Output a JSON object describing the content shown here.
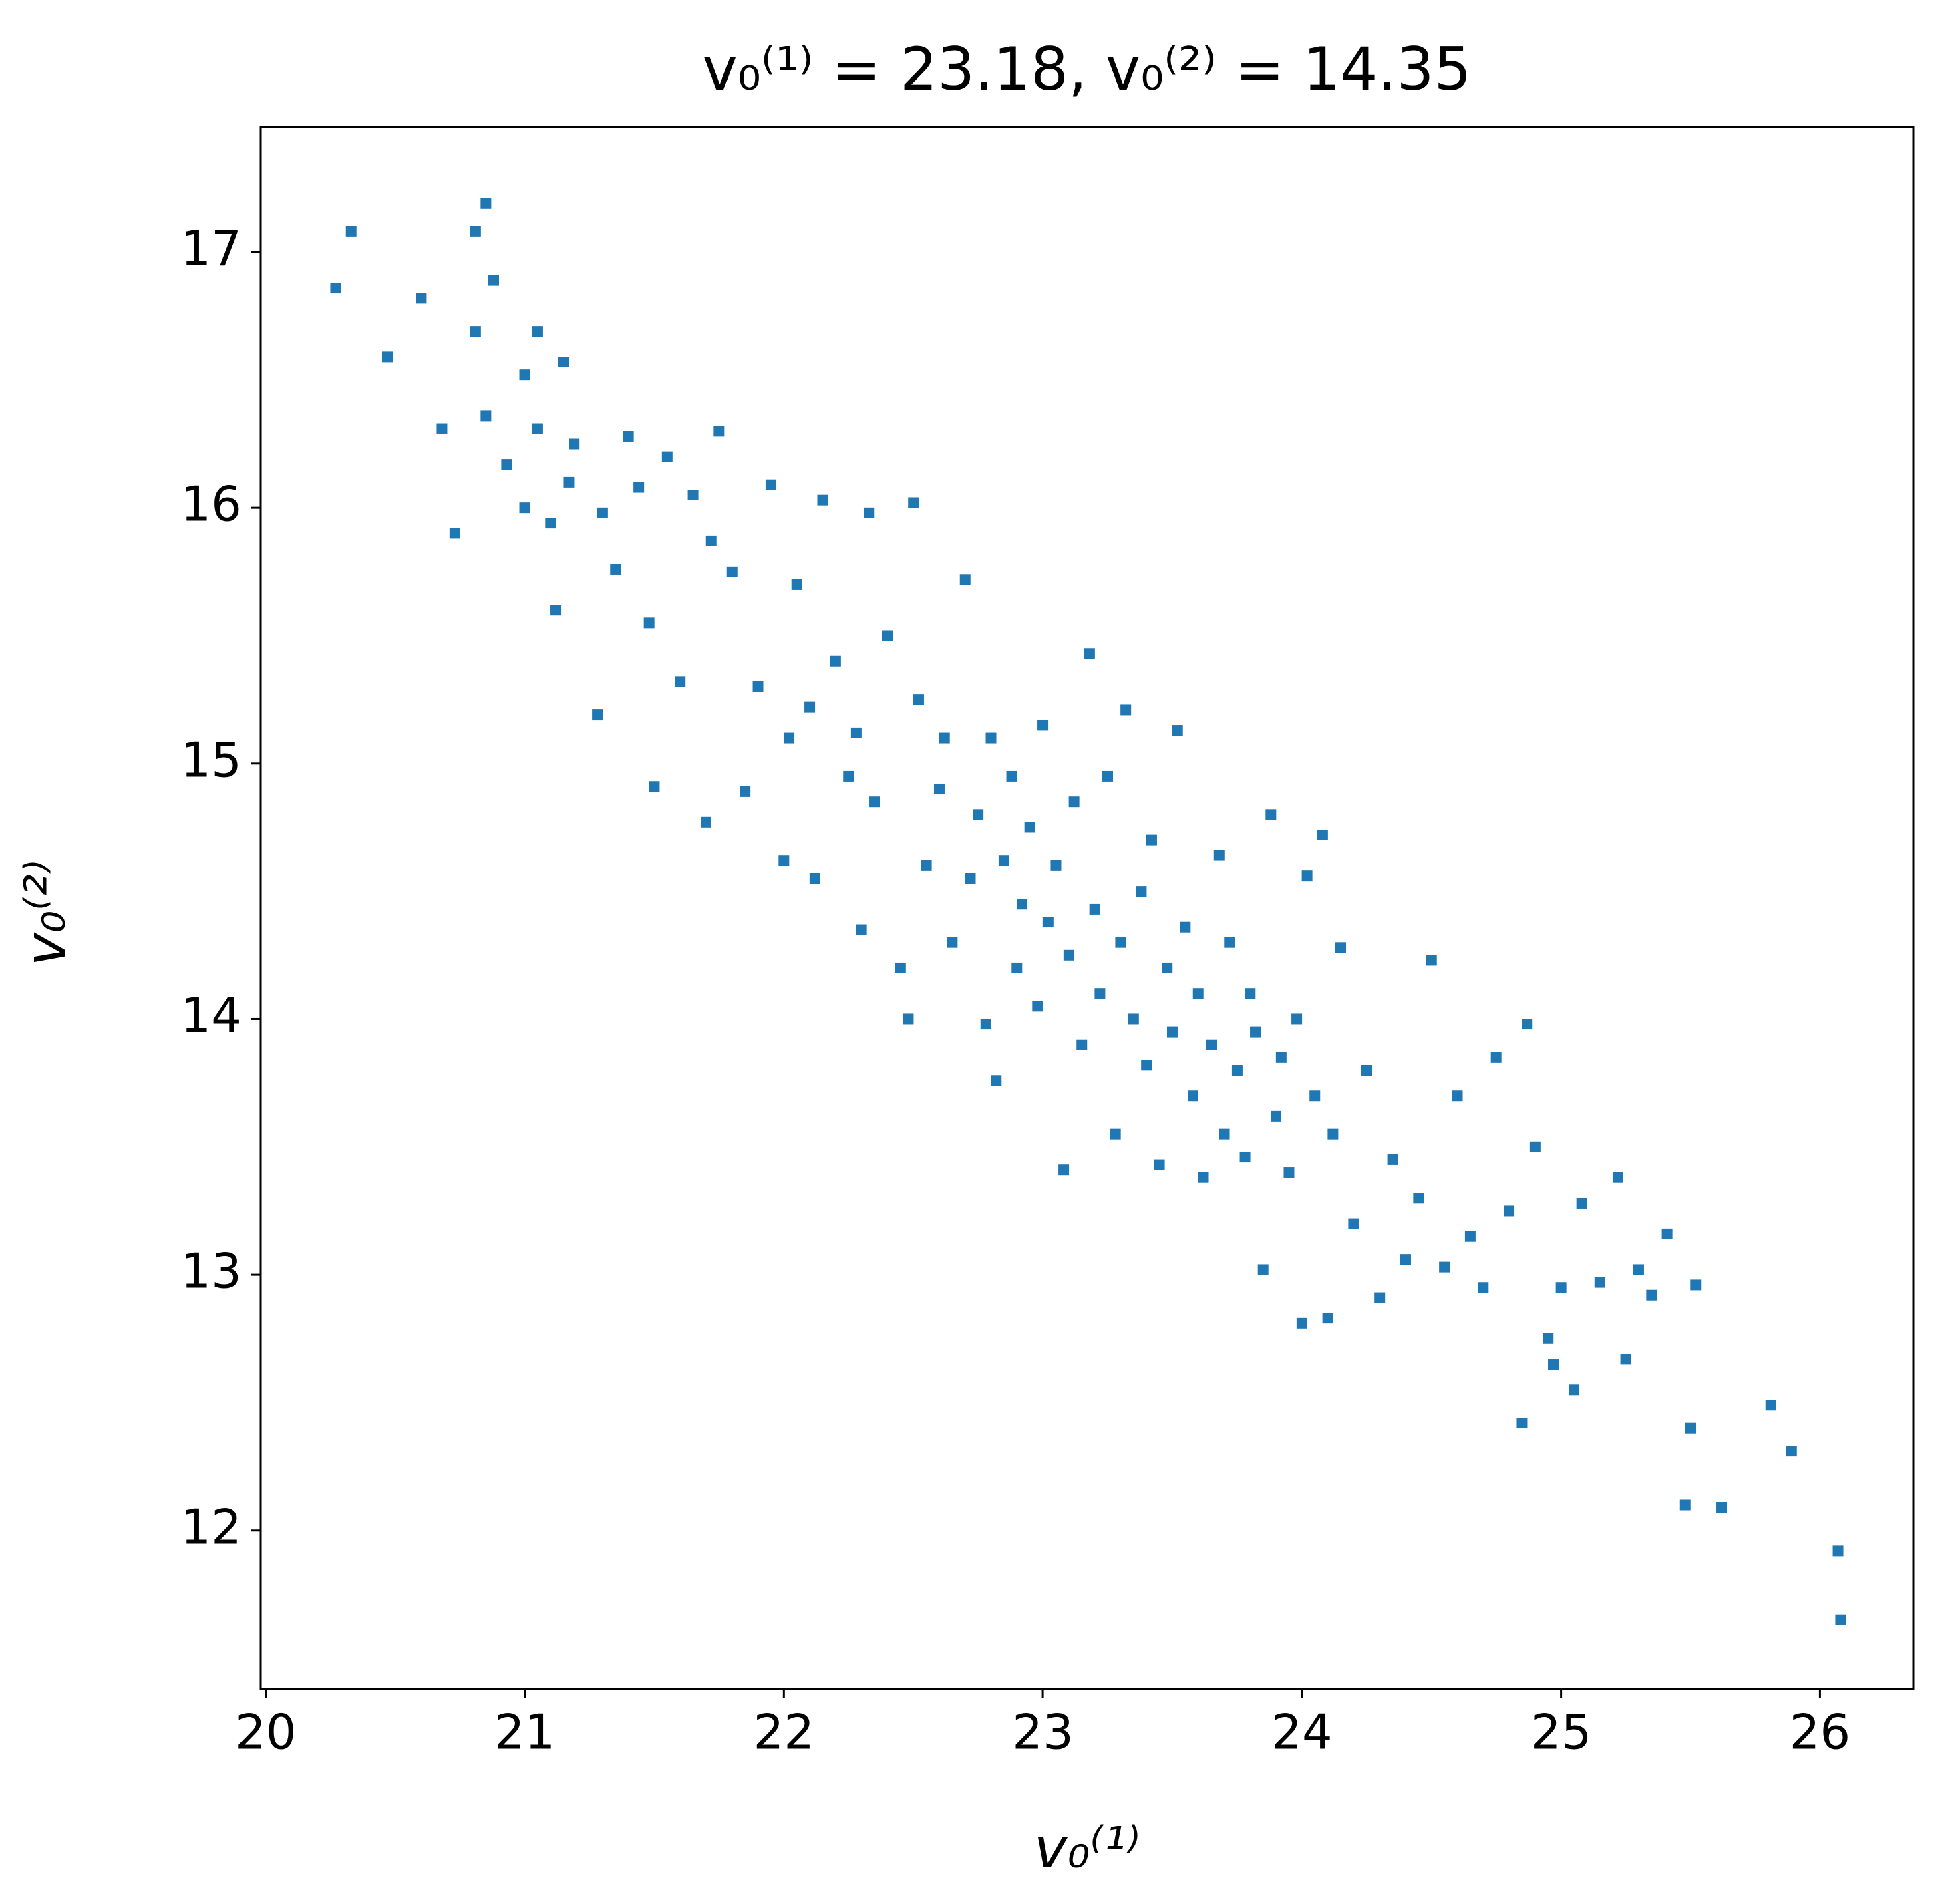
{
  "chart_data": {
    "type": "scatter",
    "title": "v₀⁽¹⁾ = 23.18, v₀⁽²⁾ = 14.35",
    "x_label": "v₀⁽¹⁾",
    "y_label": "v₀⁽²⁾",
    "color": "#1f77b4",
    "xlim": [
      19.98,
      26.36
    ],
    "ylim": [
      11.38,
      17.49
    ],
    "xticks": [
      20,
      21,
      22,
      23,
      24,
      25,
      26
    ],
    "yticks": [
      12,
      13,
      14,
      15,
      16,
      17
    ],
    "grid": false,
    "x": [
      20.27,
      20.33,
      20.47,
      20.6,
      20.68,
      20.73,
      20.81,
      20.81,
      20.85,
      20.85,
      20.88,
      20.93,
      21.0,
      21.0,
      21.05,
      21.05,
      21.1,
      21.12,
      21.15,
      21.17,
      21.19,
      21.28,
      21.3,
      21.35,
      21.4,
      21.44,
      21.48,
      21.5,
      21.55,
      21.6,
      21.65,
      21.7,
      21.72,
      21.75,
      21.8,
      21.85,
      21.9,
      21.95,
      22.0,
      22.02,
      22.05,
      22.1,
      22.12,
      22.15,
      22.2,
      22.25,
      22.28,
      22.3,
      22.33,
      22.35,
      22.4,
      22.45,
      22.48,
      22.5,
      22.52,
      22.55,
      22.6,
      22.62,
      22.65,
      22.7,
      22.72,
      22.75,
      22.78,
      22.8,
      22.82,
      22.85,
      22.88,
      22.9,
      22.92,
      22.95,
      22.98,
      23.0,
      23.02,
      23.05,
      23.08,
      23.1,
      23.12,
      23.15,
      23.18,
      23.2,
      23.22,
      23.25,
      23.28,
      23.3,
      23.32,
      23.35,
      23.38,
      23.4,
      23.42,
      23.45,
      23.48,
      23.5,
      23.52,
      23.55,
      23.58,
      23.6,
      23.62,
      23.65,
      23.68,
      23.7,
      23.72,
      23.75,
      23.78,
      23.8,
      23.82,
      23.85,
      23.88,
      23.9,
      23.92,
      23.95,
      23.98,
      24.0,
      24.02,
      24.05,
      24.08,
      24.1,
      24.12,
      24.15,
      24.2,
      24.25,
      24.3,
      24.35,
      24.4,
      24.45,
      24.5,
      24.55,
      24.6,
      24.65,
      24.7,
      24.75,
      24.8,
      24.85,
      24.87,
      24.9,
      24.95,
      24.97,
      25.0,
      25.05,
      25.08,
      25.15,
      25.22,
      25.25,
      25.3,
      25.35,
      25.41,
      25.48,
      25.5,
      25.52,
      25.62,
      25.81,
      25.89,
      26.07,
      26.08
    ],
    "values": [
      16.86,
      17.08,
      16.59,
      16.82,
      16.31,
      15.9,
      16.69,
      17.08,
      17.19,
      16.36,
      16.89,
      16.17,
      16.0,
      16.52,
      16.69,
      16.31,
      15.94,
      15.6,
      16.57,
      16.1,
      16.25,
      15.19,
      15.98,
      15.76,
      16.28,
      16.08,
      15.55,
      14.91,
      16.2,
      15.32,
      16.05,
      14.77,
      15.87,
      16.3,
      15.75,
      14.89,
      15.3,
      16.09,
      14.62,
      15.1,
      15.7,
      15.22,
      14.55,
      16.03,
      15.4,
      14.95,
      15.12,
      14.35,
      15.98,
      14.85,
      15.5,
      14.2,
      14.0,
      16.02,
      15.25,
      14.6,
      14.9,
      15.1,
      14.3,
      15.72,
      14.55,
      14.8,
      13.98,
      15.1,
      13.76,
      14.62,
      14.95,
      14.2,
      14.45,
      14.75,
      14.05,
      15.15,
      14.38,
      14.6,
      13.41,
      14.25,
      14.85,
      13.9,
      15.43,
      14.43,
      14.1,
      14.95,
      13.55,
      14.3,
      15.21,
      14.0,
      14.5,
      13.82,
      14.7,
      13.43,
      14.2,
      13.95,
      15.13,
      14.36,
      13.7,
      14.1,
      13.38,
      13.9,
      14.64,
      13.55,
      14.3,
      13.8,
      13.46,
      14.1,
      13.95,
      13.02,
      14.8,
      13.62,
      13.85,
      13.4,
      14.0,
      12.81,
      14.56,
      13.7,
      14.72,
      12.83,
      13.55,
      14.28,
      13.2,
      13.8,
      12.91,
      13.45,
      13.06,
      13.3,
      14.23,
      13.03,
      13.7,
      13.15,
      12.95,
      13.85,
      13.25,
      12.42,
      13.98,
      13.5,
      12.75,
      12.65,
      12.95,
      12.55,
      13.28,
      12.97,
      13.38,
      12.67,
      13.02,
      12.92,
      13.16,
      12.1,
      12.4,
      12.96,
      12.09,
      12.49,
      12.31,
      11.92,
      11.65
    ]
  }
}
